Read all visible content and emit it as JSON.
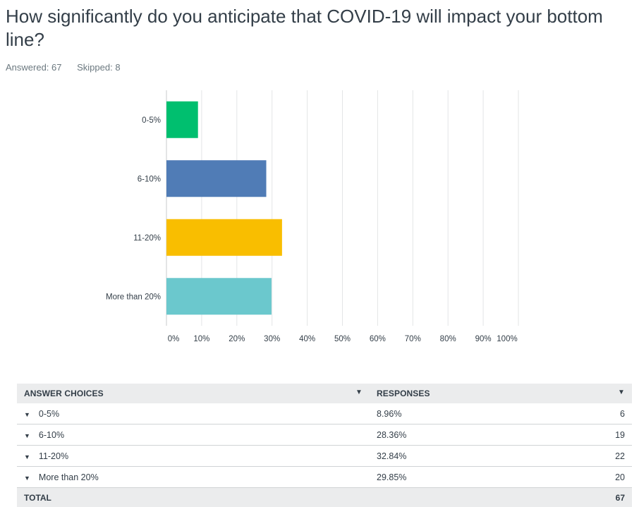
{
  "question": "How significantly do you anticipate that COVID-19 will impact your bottom line?",
  "stats": {
    "answered": "Answered: 67",
    "skipped": "Skipped: 8"
  },
  "colors": [
    "#00bf6f",
    "#507cb6",
    "#f9be00",
    "#6bc8cd"
  ],
  "chart_data": {
    "type": "bar",
    "orientation": "horizontal",
    "categories": [
      "0-5%",
      "6-10%",
      "11-20%",
      "More than 20%"
    ],
    "values": [
      8.96,
      28.36,
      32.84,
      29.85
    ],
    "xlim": [
      0,
      100
    ],
    "x_ticks": [
      "0%",
      "10%",
      "20%",
      "30%",
      "40%",
      "50%",
      "60%",
      "70%",
      "80%",
      "90%",
      "100%"
    ],
    "grid": true
  },
  "table": {
    "headers": {
      "choices": "ANSWER CHOICES",
      "responses": "RESPONSES"
    },
    "rows": [
      {
        "choice": "0-5%",
        "percent": "8.96%",
        "count": "6"
      },
      {
        "choice": "6-10%",
        "percent": "28.36%",
        "count": "19"
      },
      {
        "choice": "11-20%",
        "percent": "32.84%",
        "count": "22"
      },
      {
        "choice": "More than 20%",
        "percent": "29.85%",
        "count": "20"
      }
    ],
    "total": {
      "label": "TOTAL",
      "count": "67"
    }
  }
}
